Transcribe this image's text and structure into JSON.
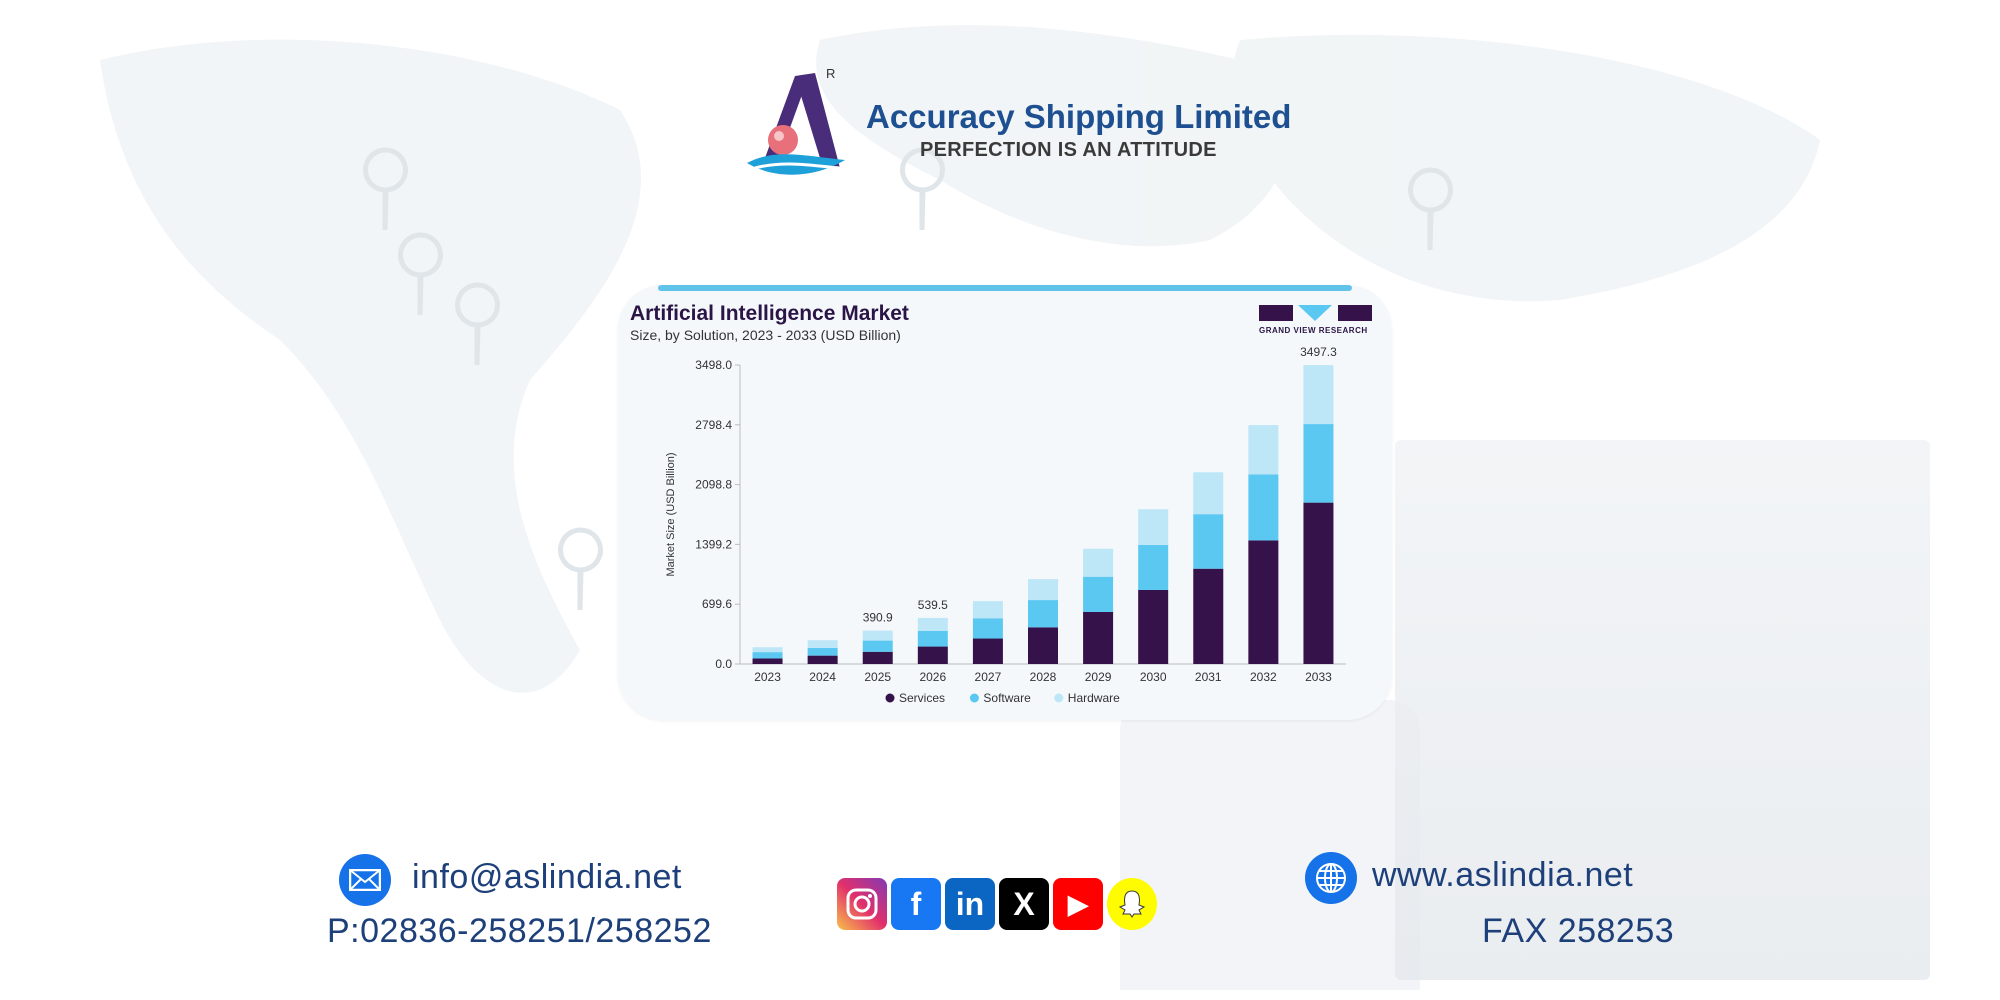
{
  "header": {
    "brand": "Accuracy Shipping Limited",
    "tagline": "PERFECTION IS AN ATTITUDE",
    "registered_mark": "R",
    "brand_color": "#1d4f91"
  },
  "chart_data": {
    "type": "bar",
    "stacked": true,
    "title": "Artificial Intelligence Market",
    "subtitle": "Size, by Solution, 2023 - 2033 (USD Billion)",
    "source_logo": "GRAND VIEW RESEARCH",
    "xlabel": "",
    "ylabel": "Market Size (USD Billion)",
    "ylim": [
      0,
      3498.0
    ],
    "yticks": [
      "0.0",
      "699.6",
      "1399.2",
      "2098.8",
      "2798.4",
      "3498.0"
    ],
    "categories": [
      "2023",
      "2024",
      "2025",
      "2026",
      "2027",
      "2028",
      "2029",
      "2030",
      "2031",
      "2032",
      "2033"
    ],
    "series": [
      {
        "name": "Services",
        "color": "#35124a",
        "values": [
          65,
          98,
          143,
          204,
          298,
          429,
          609,
          866,
          1115,
          1446,
          1888
        ]
      },
      {
        "name": "Software",
        "color": "#5bc8f2",
        "values": [
          74,
          90,
          131,
          184,
          237,
          319,
          412,
          527,
          638,
          773,
          919
        ]
      },
      {
        "name": "Hardware",
        "color": "#bde6f7",
        "values": [
          57,
          90,
          117,
          151,
          200,
          245,
          327,
          417,
          490,
          576,
          690.3
        ]
      }
    ],
    "data_labels": [
      {
        "category": "2025",
        "text": "390.9"
      },
      {
        "category": "2026",
        "text": "539.5"
      },
      {
        "category": "2033",
        "text": "3497.3"
      }
    ],
    "legend": "bottom",
    "grid": false
  },
  "footer": {
    "email": "info@aslindia.net",
    "phone": "P:02836-258251/258252",
    "website": "www.aslindia.net",
    "fax": "FAX 258253",
    "email_icon": "envelope-icon",
    "web_icon": "globe-icon",
    "social": [
      {
        "name": "instagram-icon",
        "glyph": "◎"
      },
      {
        "name": "facebook-icon",
        "glyph": "f",
        "color": "#1877f2"
      },
      {
        "name": "linkedin-icon",
        "glyph": "in",
        "color": "#0a66c2"
      },
      {
        "name": "x-icon",
        "glyph": "X",
        "color": "#000000"
      },
      {
        "name": "youtube-icon",
        "glyph": "▶",
        "color": "#ff0000"
      },
      {
        "name": "snapchat-icon",
        "glyph": "👻",
        "color": "#fffc00"
      }
    ]
  }
}
